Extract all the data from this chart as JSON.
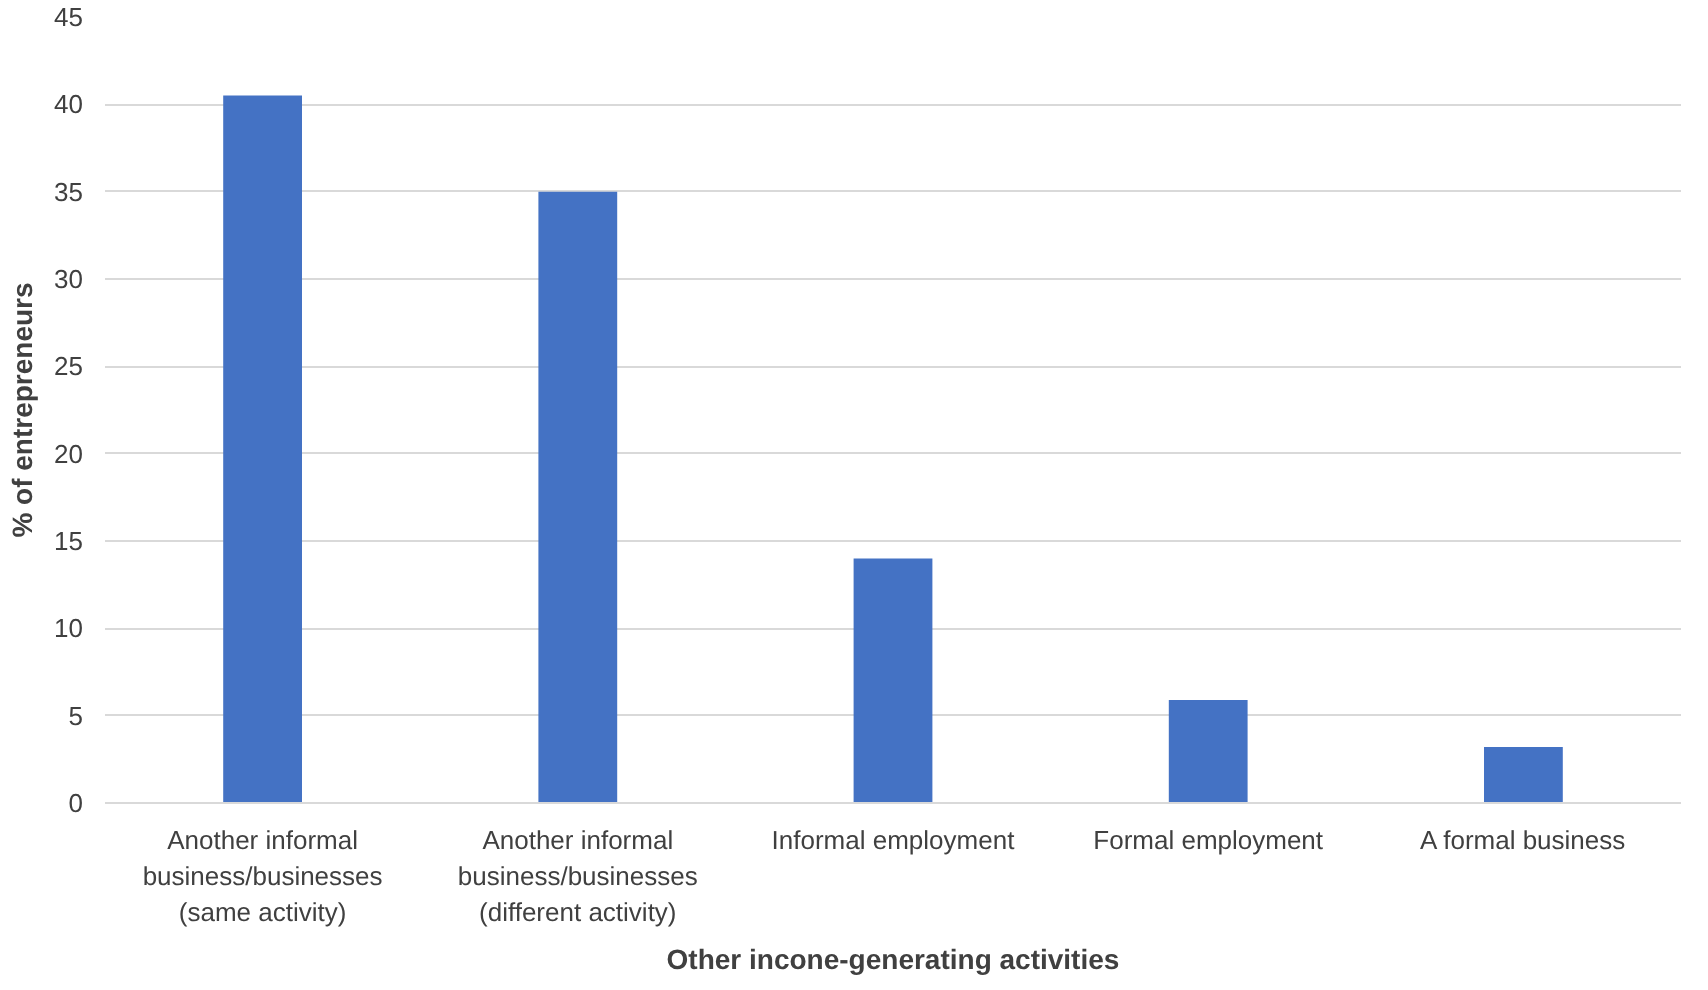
{
  "chart_data": {
    "type": "bar",
    "xlabel": "Other incone-generating activities",
    "ylabel": "% of entrepreneurs",
    "categories": [
      "Another informal business/businesses (same activity)",
      "Another informal business/businesses (different activity)",
      "Informal employment",
      "Formal employment",
      "A formal business"
    ],
    "values": [
      40.5,
      35.0,
      14.0,
      5.9,
      3.2
    ],
    "color": "#4472c4",
    "ylim": [
      0,
      45
    ],
    "yticks": [
      0,
      5,
      10,
      15,
      20,
      25,
      30,
      35,
      40,
      45
    ],
    "grid": "y"
  }
}
